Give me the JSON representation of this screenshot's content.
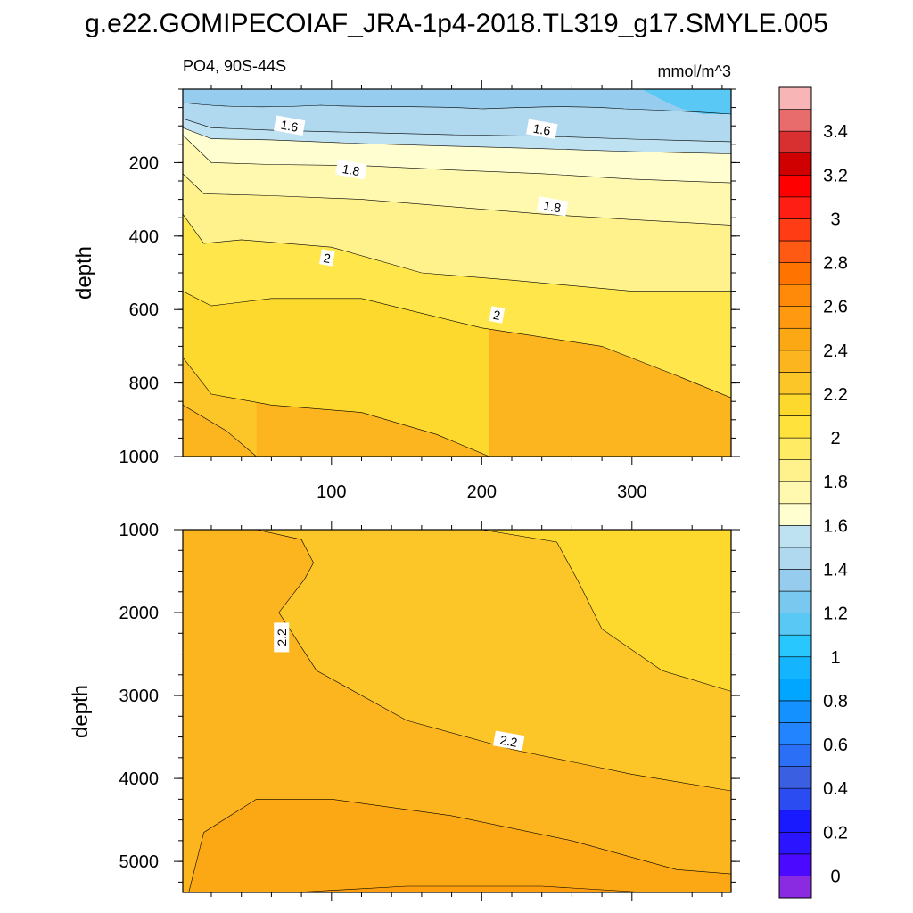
{
  "title": "g.e22.GOMIPECOIAF_JRA-1p4-2018.TL319_g17.SMYLE.005",
  "chart_data": [
    {
      "type": "contour",
      "panel": "upper",
      "left_label": "PO4, 90S-44S",
      "right_label": "mmol/m^3",
      "xlabel": "",
      "ylabel": "depth",
      "xlim": [
        1,
        366
      ],
      "ylim": [
        1000,
        0
      ],
      "x_ticks": [
        100,
        200,
        300
      ],
      "y_ticks": [
        200,
        400,
        600,
        800,
        1000
      ],
      "x_tick_labels": [
        "100",
        "200",
        "300"
      ],
      "y_tick_labels": [
        "200",
        "400",
        "600",
        "800",
        "1000"
      ],
      "contour_labels": [
        {
          "text": "1.6",
          "x": 72,
          "y": 100
        },
        {
          "text": "1.6",
          "x": 240,
          "y": 110
        },
        {
          "text": "1.8",
          "x": 113,
          "y": 220
        },
        {
          "text": "1.8",
          "x": 247,
          "y": 320
        },
        {
          "text": "2",
          "x": 97,
          "y": 460
        },
        {
          "text": "2",
          "x": 210,
          "y": 615
        }
      ],
      "contour_levels": [
        {
          "level": 1.6,
          "x": [
            1,
            20,
            60,
            120,
            180,
            240,
            300,
            366
          ],
          "depth": [
            80,
            105,
            112,
            118,
            124,
            128,
            136,
            143
          ]
        },
        {
          "level": 1.7,
          "x": [
            1,
            20,
            60,
            120,
            180,
            240,
            300,
            366
          ],
          "depth": [
            105,
            135,
            138,
            148,
            155,
            162,
            170,
            176
          ]
        },
        {
          "level": 1.8,
          "x": [
            1,
            20,
            60,
            120,
            180,
            240,
            300,
            366
          ],
          "depth": [
            125,
            200,
            205,
            208,
            220,
            230,
            245,
            255
          ]
        },
        {
          "level": 1.9,
          "x": [
            1,
            15,
            60,
            120,
            180,
            240,
            300,
            366
          ],
          "depth": [
            230,
            285,
            290,
            300,
            320,
            340,
            355,
            370
          ]
        },
        {
          "level": 2.0,
          "x": [
            1,
            15,
            40,
            100,
            160,
            220,
            300,
            366
          ],
          "depth": [
            340,
            420,
            410,
            430,
            500,
            520,
            550,
            550
          ]
        },
        {
          "level": 2.1,
          "x": [
            1,
            20,
            60,
            120,
            200,
            280,
            330,
            366
          ],
          "depth": [
            550,
            590,
            570,
            570,
            650,
            700,
            780,
            840
          ]
        },
        {
          "level": 2.2,
          "x": [
            1,
            20,
            60,
            120,
            170,
            205
          ],
          "depth": [
            730,
            830,
            860,
            880,
            940,
            1000
          ]
        },
        {
          "level": 2.3,
          "x": [
            1,
            30,
            50
          ],
          "depth": [
            860,
            930,
            1000
          ]
        }
      ]
    },
    {
      "type": "contour",
      "panel": "lower",
      "xlabel": "",
      "ylabel": "depth",
      "xlim": [
        1,
        366
      ],
      "ylim": [
        1000,
        5375
      ],
      "x_ticks": [
        100,
        200,
        300
      ],
      "y_ticks": [
        1000,
        2000,
        3000,
        4000,
        5000
      ],
      "y_tick_labels": [
        "1000",
        "2000",
        "3000",
        "4000",
        "5000"
      ],
      "contour_labels": [
        {
          "text": "2.2",
          "x": 67,
          "y": 2300
        },
        {
          "text": "2.2",
          "x": 218,
          "y": 3550
        }
      ],
      "contour_levels": [
        {
          "level": 2.2,
          "x": [
            50,
            80,
            88,
            82,
            65,
            90,
            150,
            220,
            300,
            366
          ],
          "depth": [
            1000,
            1120,
            1400,
            1600,
            2000,
            2700,
            3300,
            3650,
            3950,
            4150
          ]
        },
        {
          "level": 2.1,
          "x": [
            200,
            250,
            265,
            280,
            320,
            366
          ],
          "depth": [
            1000,
            1150,
            1650,
            2200,
            2700,
            2950
          ]
        },
        {
          "level": 2.3,
          "x": [
            5,
            15,
            50,
            100,
            180,
            260,
            330,
            366
          ],
          "depth": [
            5375,
            4650,
            4250,
            4250,
            4450,
            4750,
            5100,
            5150
          ]
        },
        {
          "level": 2.4,
          "x": [
            75,
            150,
            240,
            310
          ],
          "depth": [
            5375,
            5300,
            5300,
            5375
          ]
        }
      ]
    }
  ],
  "colorbar": {
    "labels": [
      "0",
      "0.2",
      "0.4",
      "0.6",
      "0.8",
      "1",
      "1.2",
      "1.4",
      "1.6",
      "1.8",
      "2",
      "2.2",
      "2.4",
      "2.6",
      "2.8",
      "3",
      "3.2",
      "3.4"
    ],
    "colors": [
      "#8a2be2",
      "#4b0aff",
      "#2b14ff",
      "#1a1aff",
      "#2b4cf0",
      "#3a5fe0",
      "#2a6ff5",
      "#2284ff",
      "#1590ff",
      "#00a6ff",
      "#14b4ff",
      "#28c8ff",
      "#5ac8f5",
      "#78c8f0",
      "#96cdef",
      "#b0d8ef",
      "#bfe2f2",
      "#fffed0",
      "#fff9b0",
      "#fff28c",
      "#ffeb64",
      "#ffe33c",
      "#fcd92c",
      "#fcc628",
      "#fcb51e",
      "#fca814",
      "#ff9a10",
      "#ff8a0a",
      "#ff7400",
      "#ff5a14",
      "#ff3c14",
      "#ff1e14",
      "#ff0000",
      "#d00000",
      "#d83030",
      "#e86c6c",
      "#f7b5b5"
    ]
  },
  "fill_colors": {
    "l14": "#96cdef",
    "l15": "#b0d8ef",
    "l16": "#bfe2f2",
    "l17": "#fffed0",
    "l18": "#fff9b0",
    "l19": "#fff28c",
    "l20": "#ffe64a",
    "l21": "#fcd92c",
    "l22": "#fcc628",
    "l23": "#fcb51e",
    "l24": "#fca814",
    "sky": "#5ac8f5"
  }
}
